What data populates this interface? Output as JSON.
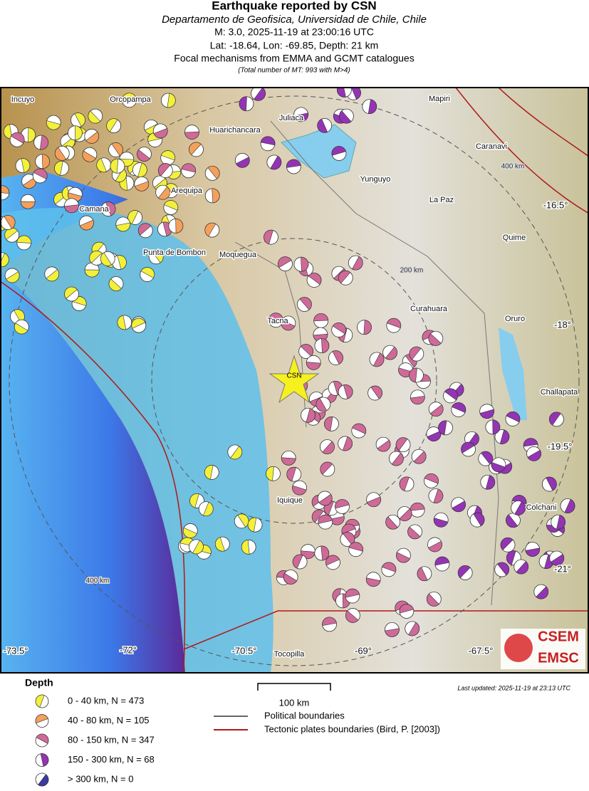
{
  "header": {
    "title": "Earthquake reported by CSN",
    "subtitle": "Departamento de Geofisica, Universidad de Chile, Chile",
    "event": "M: 3.0,  2025-11-19 at 23:00:16 UTC",
    "location": "Lat: -18.64, Lon: -69.85, Depth: 21 km",
    "catalogues": "Focal mechanisms from EMMA and GCMT catalogues",
    "note": "(Total number of MT: 993 with M>4)"
  },
  "map": {
    "places": [
      "Incuyo",
      "Orcopampa",
      "Juliaca",
      "Mapiri",
      "Huarichancara",
      "Caranavi",
      "Yunguyo",
      "Arequipa",
      "La Paz",
      "Camana",
      "Quime",
      "Punta de Bombon",
      "Moquegua",
      "Tacna",
      "Curahuara",
      "Oruro",
      "Challapata",
      "Iquique",
      "Colchani",
      "Tocopilla"
    ],
    "rings": [
      "400 km",
      "200 km",
      "400 km"
    ],
    "lat_labels": [
      "-16.5°",
      "-18°",
      "-19.5°",
      "-21°"
    ],
    "lon_labels": [
      "-73.5°",
      "-72°",
      "-70.5°",
      "-69°",
      "-67.5°"
    ],
    "epicenter": "CSN"
  },
  "legend": {
    "title": "Depth",
    "items": [
      {
        "label": "0 - 40 km, N = 473",
        "color": "#f2f03a"
      },
      {
        "label": "40 - 80 km, N = 105",
        "color": "#f5a05a"
      },
      {
        "label": "80 - 150 km, N = 347",
        "color": "#cf6a98"
      },
      {
        "label": "150 - 300 km, N = 68",
        "color": "#9434b4"
      },
      {
        "label": "> 300 km, N = 0",
        "color": "#3a3aa0"
      }
    ],
    "scale": "100 km",
    "lines": [
      {
        "label": "Political boundaries",
        "color": "#666666"
      },
      {
        "label": "Tectonic plates boundaries (Bird, P. [2003])",
        "color": "#b01818"
      }
    ],
    "updated": "Last updated: 2025-11-19 at 23:13 UTC"
  },
  "logo": [
    "CSEM",
    "EMSC"
  ]
}
